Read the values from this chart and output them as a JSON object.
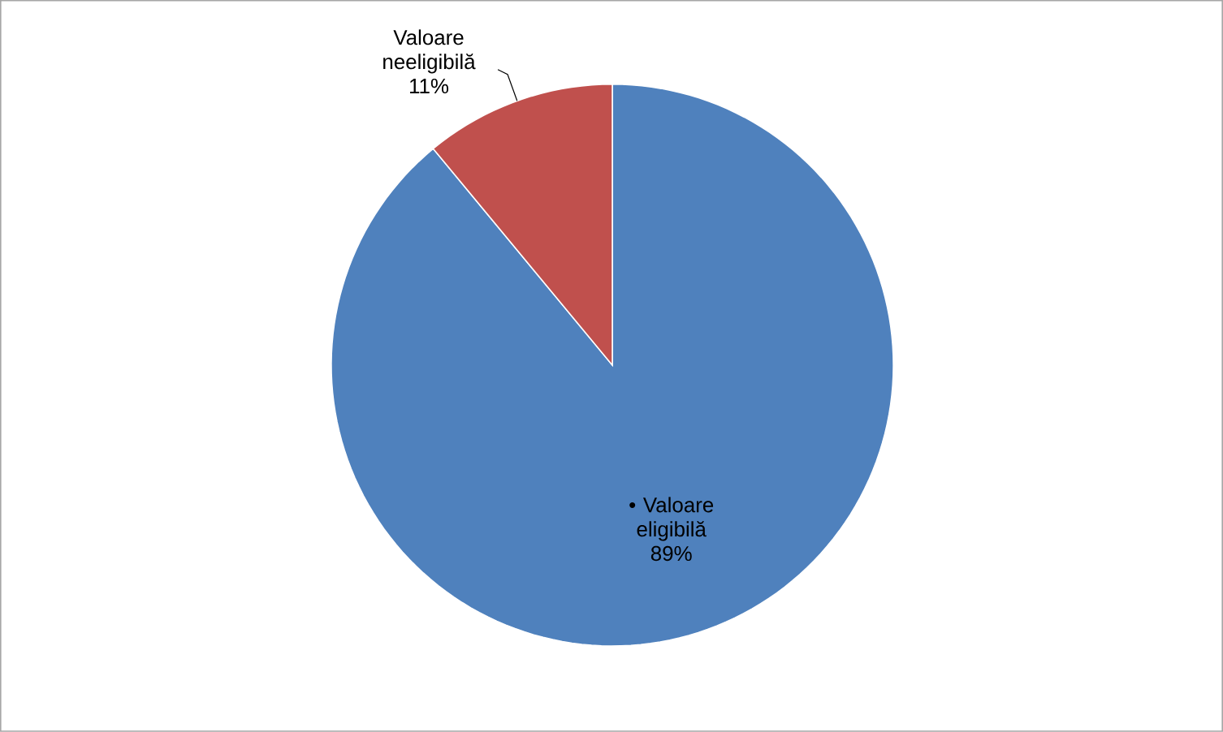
{
  "chart_data": {
    "type": "pie",
    "categories": [
      "• Valoare eligibilă",
      "Valoare neeligibilă"
    ],
    "values": [
      89,
      11
    ],
    "colors": [
      "#4f81bd",
      "#c0504d"
    ],
    "value_labels": [
      "89%",
      "11%"
    ]
  }
}
